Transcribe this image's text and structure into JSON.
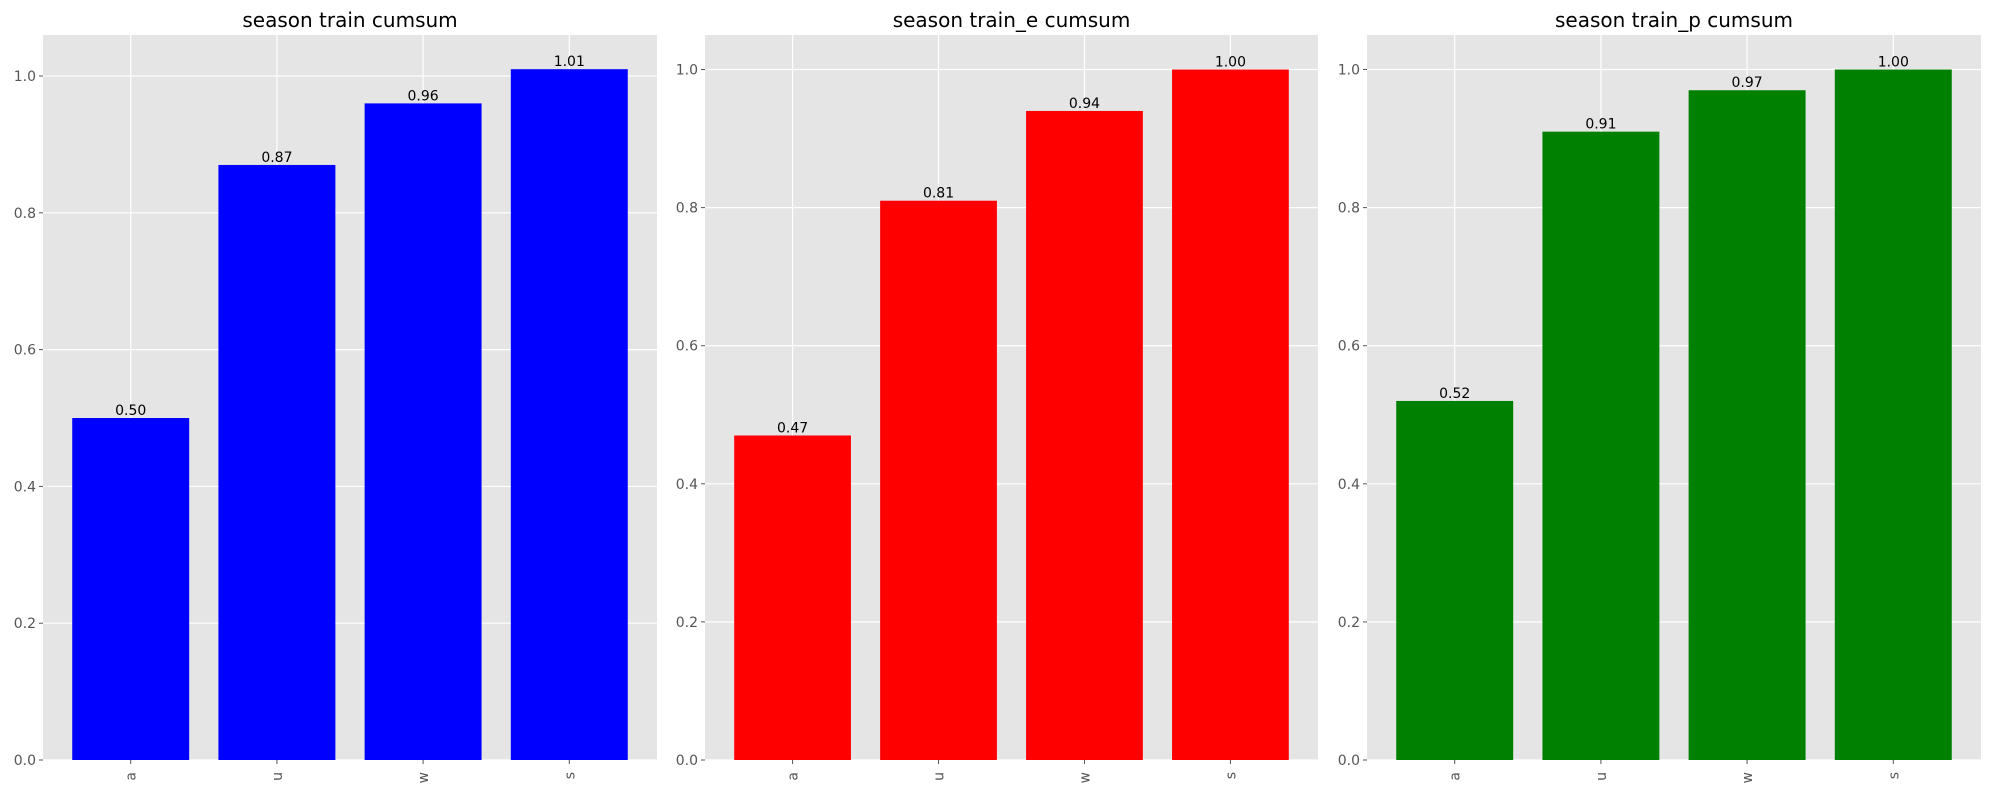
{
  "chart_data": [
    {
      "type": "bar",
      "title": "season train cumsum",
      "categories": [
        "a",
        "u",
        "w",
        "s"
      ],
      "values": [
        0.5,
        0.87,
        0.96,
        1.01
      ],
      "data_labels": [
        "0.50",
        "0.87",
        "0.96",
        "1.01"
      ],
      "color": "#0000ff",
      "ylim": [
        0,
        1.06
      ],
      "yticks": [
        0.0,
        0.2,
        0.4,
        0.6,
        0.8,
        1.0
      ],
      "ytick_labels": [
        "0.0",
        "0.2",
        "0.4",
        "0.6",
        "0.8",
        "1.0"
      ],
      "xlabel": "",
      "ylabel": "",
      "grid": true
    },
    {
      "type": "bar",
      "title": "season train_e cumsum",
      "categories": [
        "a",
        "u",
        "w",
        "s"
      ],
      "values": [
        0.47,
        0.81,
        0.94,
        1.0
      ],
      "data_labels": [
        "0.47",
        "0.81",
        "0.94",
        "1.00"
      ],
      "color": "#ff0000",
      "ylim": [
        0,
        1.05
      ],
      "yticks": [
        0.0,
        0.2,
        0.4,
        0.6,
        0.8,
        1.0
      ],
      "ytick_labels": [
        "0.0",
        "0.2",
        "0.4",
        "0.6",
        "0.8",
        "1.0"
      ],
      "xlabel": "",
      "ylabel": "",
      "grid": true
    },
    {
      "type": "bar",
      "title": "season train_p cumsum",
      "categories": [
        "a",
        "u",
        "w",
        "s"
      ],
      "values": [
        0.52,
        0.91,
        0.97,
        1.0
      ],
      "data_labels": [
        "0.52",
        "0.91",
        "0.97",
        "1.00"
      ],
      "color": "#008000",
      "ylim": [
        0,
        1.05
      ],
      "yticks": [
        0.0,
        0.2,
        0.4,
        0.6,
        0.8,
        1.0
      ],
      "ytick_labels": [
        "0.0",
        "0.2",
        "0.4",
        "0.6",
        "0.8",
        "1.0"
      ],
      "xlabel": "",
      "ylabel": "",
      "grid": true
    }
  ]
}
